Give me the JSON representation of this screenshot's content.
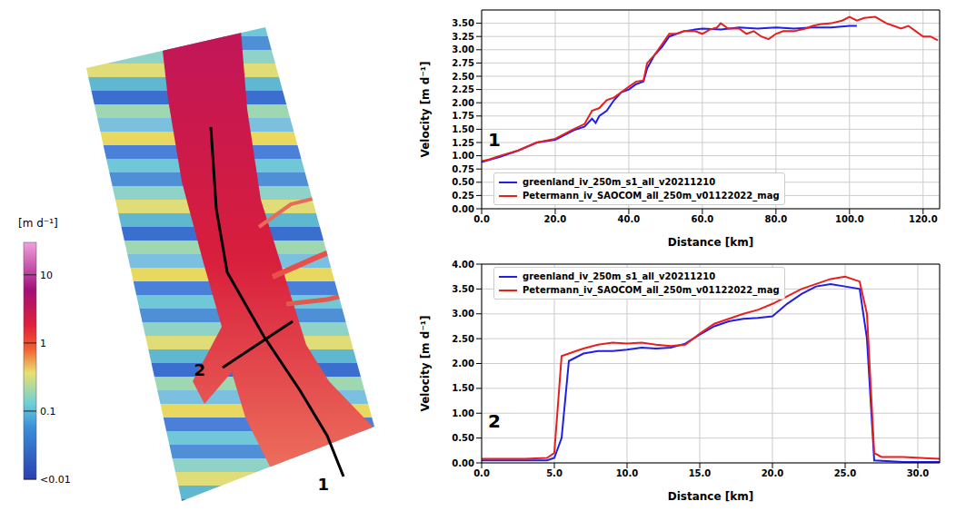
{
  "chart_data": [
    {
      "type": "map",
      "colorbar": {
        "label": "[m d⁻¹]",
        "log": true,
        "range": [
          0.01,
          30
        ],
        "ticks": [
          {
            "value": 10,
            "label": "10"
          },
          {
            "value": 1,
            "label": "1"
          },
          {
            "value": 0.1,
            "label": "0.1"
          },
          {
            "value": 0.01,
            "label": "<0.01"
          }
        ]
      },
      "profile_labels": [
        "1",
        "2"
      ]
    },
    {
      "type": "line",
      "annotation": "1",
      "x_label": "Distance [km]",
      "y_label": "Velocity [m d⁻¹]",
      "grid": true,
      "legend": "lower left",
      "xlim": [
        0,
        124.5
      ],
      "xticks": [
        {
          "value": 0,
          "label": "0.0"
        },
        {
          "value": 20,
          "label": "20.0"
        },
        {
          "value": 40,
          "label": "40.0"
        },
        {
          "value": 60,
          "label": "60.0"
        },
        {
          "value": 80,
          "label": "80.0"
        },
        {
          "value": 100,
          "label": "100.0"
        },
        {
          "value": 120,
          "label": "120.0"
        }
      ],
      "ylim": [
        0,
        3.75
      ],
      "yticks": [
        {
          "value": 0,
          "label": "0.00"
        },
        {
          "value": 0.25,
          "label": "0.25"
        },
        {
          "value": 0.5,
          "label": "0.50"
        },
        {
          "value": 0.75,
          "label": "0.75"
        },
        {
          "value": 1,
          "label": "1.00"
        },
        {
          "value": 1.25,
          "label": "1.25"
        },
        {
          "value": 1.5,
          "label": "1.50"
        },
        {
          "value": 1.75,
          "label": "1.75"
        },
        {
          "value": 2,
          "label": "2.00"
        },
        {
          "value": 2.25,
          "label": "2.25"
        },
        {
          "value": 2.5,
          "label": "2.50"
        },
        {
          "value": 2.75,
          "label": "2.75"
        },
        {
          "value": 3,
          "label": "3.00"
        },
        {
          "value": 3.25,
          "label": "3.25"
        },
        {
          "value": 3.5,
          "label": "3.50"
        }
      ],
      "series": [
        {
          "name": "greenland_iv_250m_s1_all_v20211210",
          "color": "#1f1fe6",
          "x": [
            0,
            5,
            10,
            15,
            20,
            25,
            28,
            30,
            31,
            32,
            34,
            36,
            38,
            40,
            42,
            44,
            45,
            47,
            49,
            51,
            53,
            55,
            58,
            60,
            65,
            70,
            75,
            80,
            85,
            90,
            95,
            100,
            102
          ],
          "values": [
            0.88,
            0.98,
            1.1,
            1.25,
            1.3,
            1.48,
            1.55,
            1.7,
            1.62,
            1.75,
            1.85,
            2.05,
            2.2,
            2.25,
            2.35,
            2.4,
            2.65,
            2.9,
            3.05,
            3.25,
            3.3,
            3.35,
            3.38,
            3.4,
            3.38,
            3.42,
            3.4,
            3.42,
            3.4,
            3.42,
            3.42,
            3.45,
            3.45
          ]
        },
        {
          "name": "Petermann_iv_SAOCOM_all_250m_v01122022_mag",
          "color": "#e61f1f",
          "x": [
            0,
            2,
            5,
            10,
            15,
            20,
            25,
            28,
            30,
            32,
            34,
            36,
            38,
            40,
            42,
            44,
            45,
            47,
            49,
            51,
            53,
            55,
            58,
            60,
            62,
            64,
            65,
            67,
            70,
            72,
            74,
            76,
            78,
            80,
            82,
            85,
            88,
            90,
            92,
            95,
            98,
            100,
            102,
            104,
            107,
            110,
            112,
            114,
            116,
            118,
            120,
            122,
            124
          ],
          "values": [
            0.9,
            0.93,
            1.0,
            1.1,
            1.25,
            1.32,
            1.5,
            1.6,
            1.85,
            1.9,
            2.05,
            2.1,
            2.2,
            2.3,
            2.4,
            2.42,
            2.75,
            2.9,
            3.1,
            3.3,
            3.3,
            3.35,
            3.35,
            3.3,
            3.38,
            3.42,
            3.5,
            3.4,
            3.4,
            3.3,
            3.35,
            3.25,
            3.2,
            3.3,
            3.35,
            3.35,
            3.4,
            3.45,
            3.48,
            3.5,
            3.55,
            3.62,
            3.55,
            3.6,
            3.62,
            3.5,
            3.45,
            3.4,
            3.45,
            3.35,
            3.25,
            3.25,
            3.18
          ]
        }
      ]
    },
    {
      "type": "line",
      "annotation": "2",
      "x_label": "Distance [km]",
      "y_label": "Velocity [m d⁻¹]",
      "grid": true,
      "legend": "upper left",
      "xlim": [
        0,
        31.5
      ],
      "xticks": [
        {
          "value": 0,
          "label": "0.0"
        },
        {
          "value": 5,
          "label": "5.0"
        },
        {
          "value": 10,
          "label": "10.0"
        },
        {
          "value": 15,
          "label": "15.0"
        },
        {
          "value": 20,
          "label": "20.0"
        },
        {
          "value": 25,
          "label": "25.0"
        },
        {
          "value": 30,
          "label": "30.0"
        }
      ],
      "ylim": [
        0,
        4
      ],
      "yticks": [
        {
          "value": 0,
          "label": "0.00"
        },
        {
          "value": 0.5,
          "label": "0.50"
        },
        {
          "value": 1,
          "label": "1.00"
        },
        {
          "value": 1.5,
          "label": "1.50"
        },
        {
          "value": 2,
          "label": "2.00"
        },
        {
          "value": 2.5,
          "label": "2.50"
        },
        {
          "value": 3,
          "label": "3.00"
        },
        {
          "value": 3.5,
          "label": "3.50"
        },
        {
          "value": 4,
          "label": "4.00"
        }
      ],
      "series": [
        {
          "name": "greenland_iv_250m_s1_all_v20211210",
          "color": "#1f1fe6",
          "x": [
            0,
            4.5,
            5,
            5.5,
            6,
            7,
            8,
            9,
            10,
            11,
            12,
            13,
            14,
            15,
            16,
            17,
            18,
            19,
            20,
            21,
            22,
            23,
            24,
            25,
            26,
            26.5,
            27,
            29,
            31.5
          ],
          "values": [
            0.05,
            0.05,
            0.1,
            0.5,
            2.05,
            2.2,
            2.25,
            2.25,
            2.28,
            2.32,
            2.3,
            2.32,
            2.4,
            2.58,
            2.75,
            2.85,
            2.9,
            2.92,
            2.95,
            3.2,
            3.4,
            3.55,
            3.6,
            3.55,
            3.5,
            2.5,
            0.05,
            0.02,
            0.02
          ]
        },
        {
          "name": "Petermann_iv_SAOCOM_all_250m_v01122022_mag",
          "color": "#e61f1f",
          "x": [
            0,
            3,
            4.5,
            5,
            5.5,
            6,
            7,
            8,
            9,
            10,
            11,
            12,
            13,
            14,
            15,
            16,
            17,
            18,
            19,
            20,
            21,
            22,
            23,
            24,
            25,
            26,
            26.5,
            27,
            27.5,
            29,
            31.5
          ],
          "values": [
            0.08,
            0.08,
            0.1,
            0.2,
            2.15,
            2.2,
            2.3,
            2.38,
            2.42,
            2.4,
            2.42,
            2.38,
            2.35,
            2.38,
            2.6,
            2.8,
            2.9,
            3.0,
            3.08,
            3.2,
            3.35,
            3.5,
            3.6,
            3.7,
            3.75,
            3.65,
            3.0,
            0.2,
            0.12,
            0.12,
            0.08
          ]
        }
      ]
    }
  ]
}
